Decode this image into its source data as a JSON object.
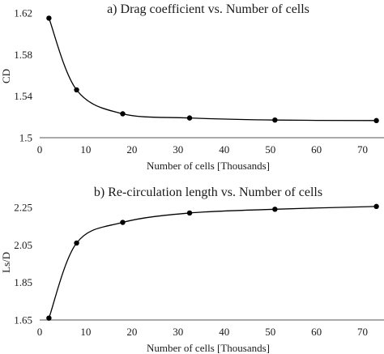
{
  "chart_data": [
    {
      "type": "line",
      "title": "a) Drag coefficient vs. Number of cells",
      "xlabel": "Number of cells [Thousands]",
      "ylabel": "CD",
      "xlim": [
        0,
        75
      ],
      "ylim": [
        1.5,
        1.62
      ],
      "x_ticks": [
        "0",
        "10",
        "20",
        "30",
        "40",
        "50",
        "60",
        "70"
      ],
      "y_ticks": [
        "1.5",
        "1.54",
        "1.58",
        "1.62"
      ],
      "grid": false,
      "series": [
        {
          "x": [
            2,
            8,
            18,
            32.5,
            51,
            73
          ],
          "values": [
            1.615,
            1.546,
            1.523,
            1.519,
            1.517,
            1.5165
          ]
        }
      ]
    },
    {
      "type": "line",
      "title": "b) Re-circulation length vs. Number of cells",
      "xlabel": "Number of cells [Thousands]",
      "ylabel": "Ls/D",
      "xlim": [
        0,
        75
      ],
      "ylim": [
        1.65,
        2.25
      ],
      "x_ticks": [
        "0",
        "10",
        "20",
        "30",
        "40",
        "50",
        "60",
        "70"
      ],
      "y_ticks": [
        "1.65",
        "1.85",
        "2.05",
        "2.25"
      ],
      "grid": false,
      "series": [
        {
          "x": [
            2,
            8,
            18,
            32.5,
            51,
            73
          ],
          "values": [
            1.66,
            2.06,
            2.17,
            2.22,
            2.24,
            2.255
          ]
        }
      ]
    }
  ],
  "style": {
    "line_color": "#000000",
    "marker_color": "#000000",
    "axis_color": "#555555"
  }
}
